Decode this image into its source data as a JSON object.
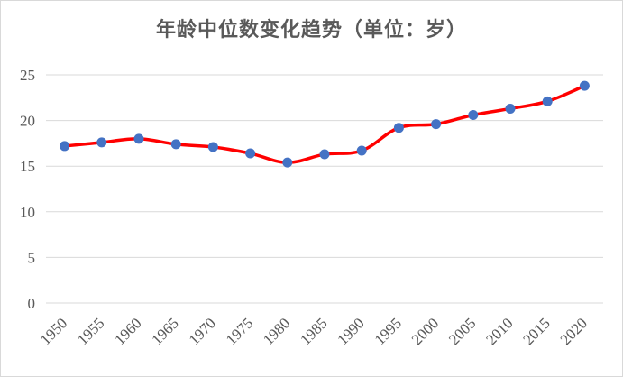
{
  "chart_data": {
    "type": "line",
    "title": "年龄中位数变化趋势（单位：岁）",
    "xlabel": "",
    "ylabel": "",
    "x": [
      "1950",
      "1955",
      "1960",
      "1965",
      "1970",
      "1975",
      "1980",
      "1985",
      "1990",
      "1995",
      "2000",
      "2005",
      "2010",
      "2015",
      "2020"
    ],
    "y_ticks": [
      "0",
      "5",
      "10",
      "15",
      "20",
      "25"
    ],
    "ylim": [
      0,
      25
    ],
    "grid": true,
    "legend": "none",
    "series": [
      {
        "color": "#ff0000",
        "marker_color": "#4472c4",
        "values": [
          17.2,
          17.6,
          18.0,
          17.4,
          17.1,
          16.4,
          15.4,
          16.3,
          16.7,
          19.2,
          19.6,
          20.6,
          21.3,
          22.1,
          23.8
        ]
      }
    ]
  }
}
